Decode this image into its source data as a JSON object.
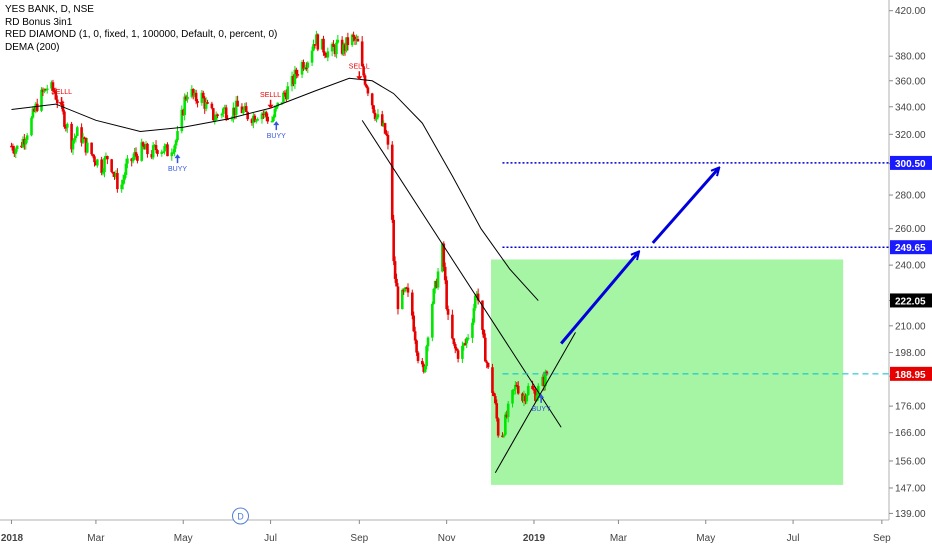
{
  "legend": {
    "symbol_line": "YES BANK, D, NSE",
    "indicator_1": "RD Bonus 3in1",
    "indicator_2": "RED DIAMOND (1, 0, fixed, 1, 100000, Default, 0, percent, 0)",
    "indicator_3": "DEMA (200)"
  },
  "colors": {
    "up_bar": "#00e600",
    "down_bar": "#e60000",
    "dema_line": "#000000",
    "target_line": "#0000cc",
    "target_arrow": "#0000dd",
    "current_price_line": "#00bcd4",
    "target_zone": "#a5f5a5",
    "trendline": "#000000",
    "buy_signal": "#3355dd",
    "sell_signal": "#e60000",
    "price_badge_current": "#e60000",
    "price_badge_target": "#1a1aff",
    "price_badge_dema": "#000000",
    "axis_text": "#444444"
  },
  "chart_data": {
    "type": "candlestick",
    "symbol": "YES BANK",
    "timeframe": "D",
    "exchange": "NSE",
    "x_axis": {
      "tick_labels": [
        "2018",
        "Mar",
        "May",
        "Jul",
        "Sep",
        "Nov",
        "2019",
        "Mar",
        "May",
        "Jul",
        "Sep"
      ],
      "tick_dates": [
        "2018-01-01",
        "2018-03-01",
        "2018-05-01",
        "2018-07-01",
        "2018-09-01",
        "2018-11-01",
        "2019-01-01",
        "2019-03-01",
        "2019-05-01",
        "2019-07-01",
        "2019-09-01"
      ]
    },
    "y_axis": {
      "scale": "log",
      "tick_labels": [
        "139.00",
        "147.00",
        "156.00",
        "166.00",
        "176.00",
        "188.00",
        "198.00",
        "210.00",
        "222.00",
        "240.00",
        "260.00",
        "280.00",
        "300.00",
        "320.00",
        "340.00",
        "360.00",
        "380.00",
        "420.00"
      ],
      "tick_values": [
        139,
        147,
        156,
        166,
        176,
        188,
        198,
        210,
        222,
        240,
        260,
        280,
        300,
        320,
        340,
        360,
        380,
        420
      ],
      "range": [
        137,
        430
      ]
    },
    "price_path": [
      [
        "2018-01-01",
        312
      ],
      [
        "2018-01-06",
        310
      ],
      [
        "2018-01-10",
        318
      ],
      [
        "2018-01-15",
        330
      ],
      [
        "2018-01-20",
        345
      ],
      [
        "2018-01-26",
        355
      ],
      [
        "2018-01-31",
        352
      ],
      [
        "2018-02-03",
        342
      ],
      [
        "2018-02-08",
        328
      ],
      [
        "2018-02-12",
        315
      ],
      [
        "2018-02-17",
        322
      ],
      [
        "2018-02-22",
        312
      ],
      [
        "2018-02-27",
        305
      ],
      [
        "2018-03-05",
        298
      ],
      [
        "2018-03-10",
        306
      ],
      [
        "2018-03-14",
        292
      ],
      [
        "2018-03-18",
        283
      ],
      [
        "2018-03-22",
        297
      ],
      [
        "2018-03-28",
        305
      ],
      [
        "2018-04-03",
        310
      ],
      [
        "2018-04-08",
        306
      ],
      [
        "2018-04-14",
        312
      ],
      [
        "2018-04-20",
        308
      ],
      [
        "2018-04-25",
        314
      ],
      [
        "2018-04-28",
        320
      ],
      [
        "2018-05-02",
        345
      ],
      [
        "2018-05-05",
        355
      ],
      [
        "2018-05-09",
        345
      ],
      [
        "2018-05-13",
        350
      ],
      [
        "2018-05-18",
        338
      ],
      [
        "2018-05-23",
        332
      ],
      [
        "2018-05-29",
        338
      ],
      [
        "2018-06-03",
        336
      ],
      [
        "2018-06-09",
        340
      ],
      [
        "2018-06-14",
        334
      ],
      [
        "2018-06-19",
        333
      ],
      [
        "2018-06-24",
        337
      ],
      [
        "2018-06-29",
        332
      ],
      [
        "2018-07-02",
        330
      ],
      [
        "2018-07-06",
        340
      ],
      [
        "2018-07-11",
        350
      ],
      [
        "2018-07-16",
        358
      ],
      [
        "2018-07-21",
        372
      ],
      [
        "2018-07-27",
        378
      ],
      [
        "2018-08-01",
        395
      ],
      [
        "2018-08-06",
        388
      ],
      [
        "2018-08-11",
        382
      ],
      [
        "2018-08-16",
        388
      ],
      [
        "2018-08-21",
        386
      ],
      [
        "2018-08-26",
        396
      ],
      [
        "2018-08-31",
        390
      ],
      [
        "2018-09-03",
        368
      ],
      [
        "2018-09-06",
        358
      ],
      [
        "2018-09-10",
        343
      ],
      [
        "2018-09-13",
        332
      ],
      [
        "2018-09-17",
        326
      ],
      [
        "2018-09-20",
        318
      ],
      [
        "2018-09-23",
        293
      ],
      [
        "2018-09-25",
        240
      ],
      [
        "2018-09-28",
        221
      ],
      [
        "2018-10-04",
        226
      ],
      [
        "2018-10-08",
        215
      ],
      [
        "2018-10-12",
        197
      ],
      [
        "2018-10-16",
        188
      ],
      [
        "2018-10-20",
        215
      ],
      [
        "2018-10-24",
        228
      ],
      [
        "2018-10-29",
        248
      ],
      [
        "2018-11-02",
        212
      ],
      [
        "2018-11-06",
        200
      ],
      [
        "2018-11-10",
        197
      ],
      [
        "2018-11-14",
        202
      ],
      [
        "2018-11-18",
        210
      ],
      [
        "2018-11-22",
        228
      ],
      [
        "2018-11-26",
        205
      ],
      [
        "2018-11-30",
        190
      ],
      [
        "2018-12-04",
        180
      ],
      [
        "2018-12-08",
        162
      ],
      [
        "2018-12-12",
        170
      ],
      [
        "2018-12-16",
        178
      ],
      [
        "2018-12-20",
        185
      ],
      [
        "2018-12-24",
        179
      ],
      [
        "2018-12-28",
        183
      ],
      [
        "2019-01-02",
        181
      ],
      [
        "2019-01-06",
        184
      ],
      [
        "2019-01-10",
        189
      ]
    ],
    "series": [
      {
        "name": "DEMA (200)",
        "type": "line",
        "points": [
          [
            "2018-01-01",
            338
          ],
          [
            "2018-02-01",
            342
          ],
          [
            "2018-03-01",
            330
          ],
          [
            "2018-04-01",
            322
          ],
          [
            "2018-05-01",
            325
          ],
          [
            "2018-06-01",
            331
          ],
          [
            "2018-07-01",
            339
          ],
          [
            "2018-08-01",
            352
          ],
          [
            "2018-08-25",
            362
          ],
          [
            "2018-09-10",
            360
          ],
          [
            "2018-09-25",
            350
          ],
          [
            "2018-10-15",
            328
          ],
          [
            "2018-11-05",
            292
          ],
          [
            "2018-11-25",
            260
          ],
          [
            "2018-12-15",
            238
          ],
          [
            "2019-01-04",
            222
          ]
        ]
      }
    ],
    "current_price": 188.95,
    "dema_last": 222.05,
    "signals": [
      {
        "type": "sell",
        "label": "SELLL",
        "date": "2018-02-05",
        "price": 342
      },
      {
        "type": "buy",
        "label": "BUYY",
        "date": "2018-04-27",
        "price": 305
      },
      {
        "type": "sell",
        "label": "SELLL",
        "date": "2018-07-01",
        "price": 340
      },
      {
        "type": "buy",
        "label": "BUYY",
        "date": "2018-07-05",
        "price": 328
      },
      {
        "type": "sell",
        "label": "SELLL",
        "date": "2018-09-01",
        "price": 362
      },
      {
        "type": "buy",
        "label": "BUYY",
        "date": "2019-01-06",
        "price": 180
      }
    ],
    "annotations": {
      "target_levels": [
        249.65,
        300.5
      ],
      "target_level_start": "2018-12-10",
      "target_labels": [
        "249.65",
        "300.50"
      ],
      "current_price_label": "188.95",
      "dema_label": "222.05",
      "target_zone": {
        "x_start": "2018-12-02",
        "x_end": "2019-08-05",
        "y_low": 148,
        "y_high": 243
      },
      "trendlines": [
        {
          "from": [
            "2018-09-03",
            330
          ],
          "to": [
            "2019-01-20",
            168
          ]
        },
        {
          "from": [
            "2018-12-05",
            152
          ],
          "to": [
            "2019-01-30",
            207
          ]
        }
      ],
      "arrows": [
        {
          "from": [
            "2019-01-20",
            202
          ],
          "to": [
            "2019-03-15",
            247
          ]
        },
        {
          "from": [
            "2019-03-25",
            252
          ],
          "to": [
            "2019-05-10",
            297
          ]
        }
      ],
      "date_marker_label": "D",
      "date_marker": "2018-06-10"
    }
  }
}
